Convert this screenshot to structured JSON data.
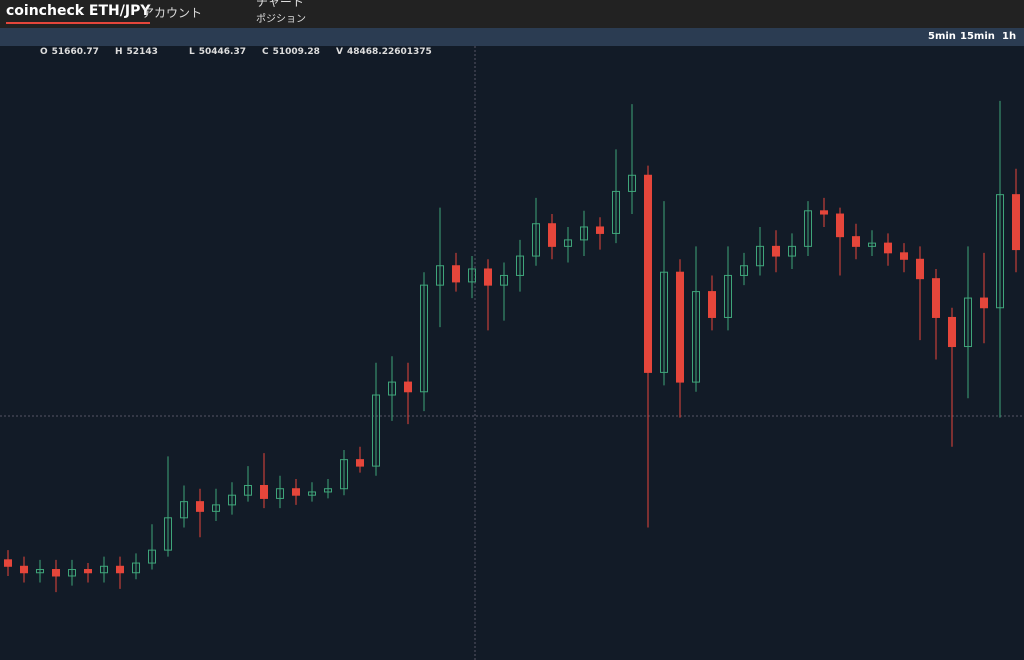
{
  "header": {
    "brand": "coincheck ETH/JPY",
    "menu": [
      "アカウント",
      "チャート",
      "ポジション"
    ]
  },
  "intervals": [
    "5min",
    "15min",
    "1h"
  ],
  "ohlc_info": [
    {
      "label": "O",
      "value": 51660.77
    },
    {
      "label": "H",
      "value": 52143
    },
    {
      "label": "L",
      "value": 50446.37
    },
    {
      "label": "C",
      "value": 51009.28
    },
    {
      "label": "V",
      "value": 48468.22601375
    }
  ],
  "chart_data": {
    "type": "candlestick",
    "open": [
      42100,
      41900,
      41700,
      41800,
      41600,
      41800,
      41700,
      41900,
      41700,
      42000,
      42400,
      43400,
      43900,
      43600,
      43800,
      44100,
      44400,
      44000,
      44300,
      44100,
      44200,
      44300,
      45200,
      45000,
      47200,
      47600,
      47300,
      50600,
      51200,
      50700,
      51100,
      50600,
      50900,
      51500,
      52500,
      51800,
      52000,
      52400,
      52200,
      53500,
      54000,
      47900,
      51000,
      47600,
      50400,
      49600,
      50900,
      51200,
      51800,
      51500,
      51800,
      52900,
      52800,
      52100,
      51800,
      51900,
      51600,
      51400,
      50800,
      49600,
      48700,
      50200,
      49900,
      53400
    ],
    "high": [
      42400,
      42200,
      42100,
      42100,
      42100,
      42000,
      42200,
      42200,
      42300,
      43200,
      45300,
      44400,
      44300,
      44300,
      44500,
      45000,
      45400,
      44700,
      44600,
      44500,
      44600,
      45500,
      45600,
      48200,
      48400,
      48200,
      51000,
      53000,
      51600,
      51500,
      51400,
      51300,
      52000,
      53300,
      52800,
      52400,
      52900,
      52700,
      54800,
      56200,
      54300,
      53200,
      51400,
      51800,
      50900,
      51800,
      51600,
      52400,
      52300,
      52200,
      53200,
      53300,
      53000,
      52500,
      52300,
      52200,
      51900,
      51800,
      51100,
      49900,
      51800,
      51600,
      56300,
      54200
    ],
    "low": [
      41600,
      41400,
      41400,
      41100,
      41300,
      41400,
      41400,
      41200,
      41500,
      41800,
      42200,
      43100,
      42800,
      43300,
      43500,
      43900,
      43700,
      43700,
      43800,
      43900,
      44000,
      44100,
      44800,
      44700,
      46400,
      46300,
      46700,
      49300,
      50400,
      50200,
      49200,
      49500,
      50400,
      51200,
      51400,
      51300,
      51500,
      51700,
      51900,
      52800,
      43100,
      47500,
      46500,
      47300,
      49200,
      49200,
      50600,
      50900,
      51000,
      51100,
      51500,
      52400,
      50900,
      51400,
      51500,
      51200,
      51000,
      48900,
      48300,
      45600,
      47100,
      48800,
      46500,
      51000
    ],
    "close": [
      41900,
      41700,
      41800,
      41600,
      41800,
      41700,
      41900,
      41700,
      42000,
      42400,
      43400,
      43900,
      43600,
      43800,
      44100,
      44400,
      44000,
      44300,
      44100,
      44200,
      44300,
      45200,
      45000,
      47200,
      47600,
      47300,
      50600,
      51200,
      50700,
      51100,
      50600,
      50900,
      51500,
      52500,
      51800,
      52000,
      52400,
      52200,
      53500,
      54000,
      47900,
      51000,
      47600,
      50400,
      49600,
      50900,
      51200,
      51800,
      51500,
      51800,
      52900,
      52800,
      52100,
      51800,
      51900,
      51600,
      51400,
      50800,
      49600,
      48700,
      50200,
      49900,
      53400,
      51700
    ],
    "ylim": [
      39000,
      58000
    ],
    "up_color": "#3fa57a",
    "down_color": "#e5463b"
  }
}
